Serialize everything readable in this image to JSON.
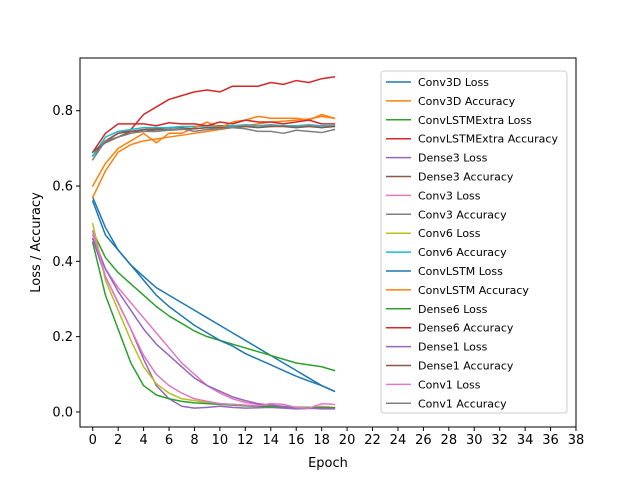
{
  "chart_data": {
    "type": "line",
    "xlabel": "Epoch",
    "ylabel": "Loss / Accuracy",
    "xlim": [
      -1,
      38
    ],
    "ylim": [
      -0.04,
      0.94
    ],
    "xticks": [
      0,
      2,
      4,
      6,
      8,
      10,
      12,
      14,
      16,
      18,
      20,
      22,
      24,
      26,
      28,
      30,
      32,
      34,
      36,
      38
    ],
    "yticks": [
      0.0,
      0.2,
      0.4,
      0.6,
      0.8
    ],
    "grid": false,
    "legend_position": "upper-right",
    "x": [
      0,
      1,
      2,
      3,
      4,
      5,
      6,
      7,
      8,
      9,
      10,
      11,
      12,
      13,
      14,
      15,
      16,
      17,
      18,
      19
    ],
    "series": [
      {
        "name": "Conv3D Loss",
        "color": "#1f77b4",
        "values": [
          0.57,
          0.49,
          0.43,
          0.39,
          0.36,
          0.33,
          0.31,
          0.29,
          0.27,
          0.25,
          0.23,
          0.21,
          0.19,
          0.17,
          0.15,
          0.13,
          0.11,
          0.09,
          0.07,
          0.055
        ]
      },
      {
        "name": "Conv3D Accuracy",
        "color": "#ff7f0e",
        "values": [
          0.57,
          0.64,
          0.69,
          0.71,
          0.72,
          0.725,
          0.73,
          0.735,
          0.74,
          0.745,
          0.75,
          0.755,
          0.76,
          0.765,
          0.77,
          0.772,
          0.775,
          0.778,
          0.785,
          0.78
        ]
      },
      {
        "name": "ConvLSTMExtra Loss",
        "color": "#2ca02c",
        "values": [
          0.48,
          0.41,
          0.37,
          0.34,
          0.31,
          0.28,
          0.255,
          0.235,
          0.215,
          0.2,
          0.19,
          0.18,
          0.17,
          0.16,
          0.15,
          0.14,
          0.13,
          0.125,
          0.12,
          0.11
        ]
      },
      {
        "name": "ConvLSTMExtra Accuracy",
        "color": "#d62728",
        "values": [
          0.68,
          0.72,
          0.74,
          0.75,
          0.79,
          0.81,
          0.83,
          0.84,
          0.85,
          0.855,
          0.85,
          0.865,
          0.865,
          0.865,
          0.875,
          0.87,
          0.88,
          0.875,
          0.885,
          0.89
        ]
      },
      {
        "name": "Dense3 Loss",
        "color": "#9467bd",
        "values": [
          0.46,
          0.36,
          0.29,
          0.22,
          0.14,
          0.07,
          0.035,
          0.015,
          0.01,
          0.012,
          0.015,
          0.012,
          0.01,
          0.011,
          0.012,
          0.01,
          0.008,
          0.009,
          0.01,
          0.01
        ]
      },
      {
        "name": "Dense3 Accuracy",
        "color": "#8c564b",
        "values": [
          0.68,
          0.72,
          0.74,
          0.745,
          0.75,
          0.752,
          0.755,
          0.756,
          0.758,
          0.76,
          0.76,
          0.76,
          0.762,
          0.76,
          0.762,
          0.76,
          0.76,
          0.762,
          0.76,
          0.76
        ]
      },
      {
        "name": "Conv3 Loss",
        "color": "#e377c2",
        "values": [
          0.47,
          0.38,
          0.33,
          0.29,
          0.25,
          0.21,
          0.17,
          0.13,
          0.1,
          0.07,
          0.05,
          0.035,
          0.025,
          0.02,
          0.018,
          0.015,
          0.012,
          0.01,
          0.015,
          0.012
        ]
      },
      {
        "name": "Conv3 Accuracy",
        "color": "#7f7f7f",
        "values": [
          0.69,
          0.72,
          0.73,
          0.745,
          0.745,
          0.745,
          0.748,
          0.75,
          0.752,
          0.755,
          0.755,
          0.758,
          0.758,
          0.76,
          0.758,
          0.76,
          0.758,
          0.76,
          0.755,
          0.76
        ]
      },
      {
        "name": "Conv6 Loss",
        "color": "#bcbd22",
        "values": [
          0.5,
          0.35,
          0.27,
          0.19,
          0.12,
          0.075,
          0.05,
          0.035,
          0.03,
          0.025,
          0.022,
          0.02,
          0.018,
          0.016,
          0.015,
          0.014,
          0.013,
          0.012,
          0.012,
          0.012
        ]
      },
      {
        "name": "Conv6 Accuracy",
        "color": "#17becf",
        "values": [
          0.68,
          0.73,
          0.745,
          0.75,
          0.755,
          0.755,
          0.755,
          0.758,
          0.758,
          0.76,
          0.758,
          0.76,
          0.76,
          0.76,
          0.76,
          0.76,
          0.76,
          0.76,
          0.76,
          0.76
        ]
      },
      {
        "name": "ConvLSTM Loss",
        "color": "#1f77b4",
        "values": [
          0.56,
          0.47,
          0.43,
          0.39,
          0.35,
          0.31,
          0.28,
          0.255,
          0.23,
          0.21,
          0.19,
          0.175,
          0.155,
          0.14,
          0.125,
          0.11,
          0.095,
          0.082,
          0.07,
          0.055
        ]
      },
      {
        "name": "ConvLSTM Accuracy",
        "color": "#ff7f0e",
        "values": [
          0.6,
          0.66,
          0.7,
          0.72,
          0.74,
          0.715,
          0.74,
          0.74,
          0.755,
          0.77,
          0.755,
          0.77,
          0.775,
          0.785,
          0.78,
          0.78,
          0.78,
          0.775,
          0.79,
          0.78
        ]
      },
      {
        "name": "Dense6 Loss",
        "color": "#2ca02c",
        "values": [
          0.45,
          0.31,
          0.22,
          0.13,
          0.07,
          0.045,
          0.035,
          0.028,
          0.024,
          0.022,
          0.02,
          0.018,
          0.016,
          0.015,
          0.014,
          0.013,
          0.012,
          0.012,
          0.011,
          0.011
        ]
      },
      {
        "name": "Dense6 Accuracy",
        "color": "#d62728",
        "values": [
          0.69,
          0.74,
          0.765,
          0.765,
          0.765,
          0.76,
          0.768,
          0.765,
          0.765,
          0.76,
          0.77,
          0.765,
          0.775,
          0.77,
          0.77,
          0.765,
          0.77,
          0.775,
          0.765,
          0.765
        ]
      },
      {
        "name": "Dense1 Loss",
        "color": "#9467bd",
        "values": [
          0.46,
          0.38,
          0.32,
          0.27,
          0.22,
          0.18,
          0.15,
          0.12,
          0.09,
          0.07,
          0.055,
          0.04,
          0.03,
          0.022,
          0.018,
          0.014,
          0.012,
          0.01,
          0.008,
          0.008
        ]
      },
      {
        "name": "Dense1 Accuracy",
        "color": "#8c564b",
        "values": [
          0.69,
          0.715,
          0.73,
          0.745,
          0.745,
          0.75,
          0.75,
          0.752,
          0.752,
          0.755,
          0.755,
          0.755,
          0.758,
          0.755,
          0.758,
          0.758,
          0.755,
          0.758,
          0.755,
          0.758
        ]
      },
      {
        "name": "Conv1 Loss",
        "color": "#e377c2",
        "values": [
          0.48,
          0.36,
          0.29,
          0.22,
          0.15,
          0.1,
          0.07,
          0.05,
          0.035,
          0.028,
          0.022,
          0.02,
          0.018,
          0.016,
          0.022,
          0.02,
          0.012,
          0.01,
          0.022,
          0.02
        ]
      },
      {
        "name": "Conv1 Accuracy",
        "color": "#7f7f7f",
        "values": [
          0.67,
          0.72,
          0.73,
          0.74,
          0.745,
          0.745,
          0.75,
          0.752,
          0.745,
          0.75,
          0.752,
          0.755,
          0.752,
          0.745,
          0.745,
          0.74,
          0.748,
          0.745,
          0.742,
          0.75
        ]
      }
    ]
  }
}
